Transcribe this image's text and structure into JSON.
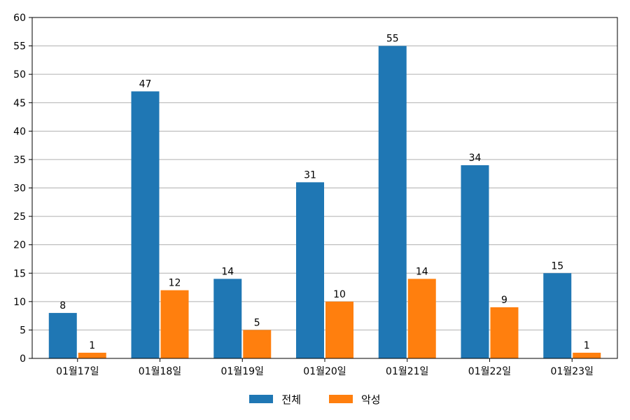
{
  "chart_data": {
    "type": "bar",
    "categories": [
      "01월17일",
      "01월18일",
      "01월19일",
      "01월20일",
      "01월21일",
      "01월22일",
      "01월23일"
    ],
    "series": [
      {
        "name": "전체",
        "values": [
          8,
          47,
          14,
          31,
          55,
          34,
          15
        ],
        "color": "#1f77b4"
      },
      {
        "name": "악성",
        "values": [
          1,
          12,
          5,
          10,
          14,
          9,
          1
        ],
        "color": "#ff7f0e"
      }
    ],
    "ylim": [
      0,
      60
    ],
    "yticks": [
      0,
      5,
      10,
      15,
      20,
      25,
      30,
      35,
      40,
      45,
      50,
      55,
      60
    ],
    "grid": "horizontal",
    "legend_position": "bottom-center",
    "data_labels": true
  }
}
